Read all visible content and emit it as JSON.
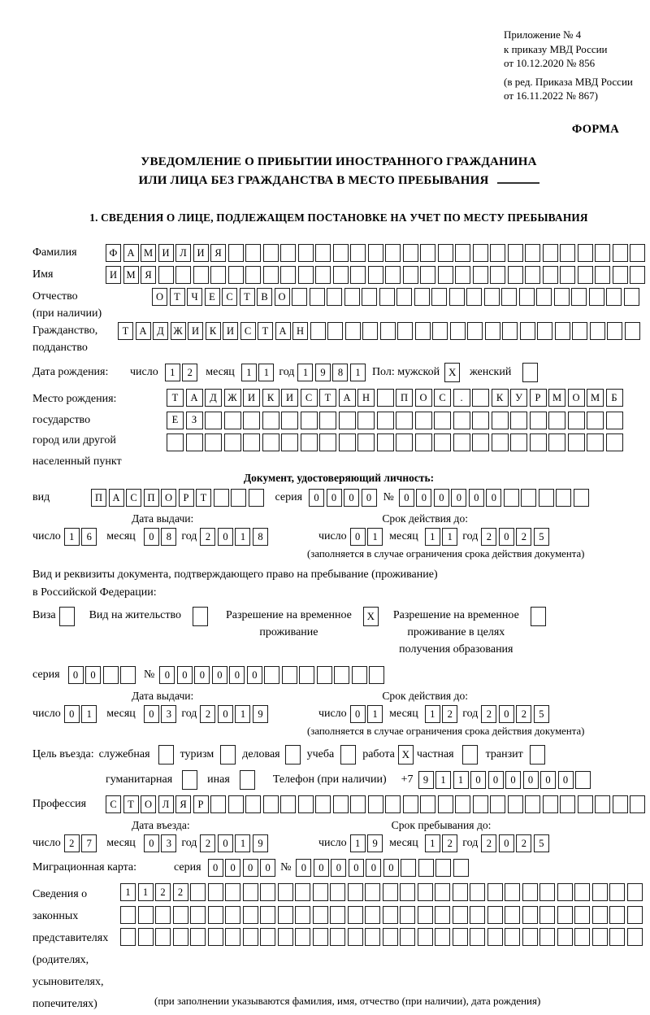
{
  "date_labels": {
    "day": "число",
    "month": "месяц",
    "year": "год"
  },
  "header": {
    "appendix1": "Приложение № 4",
    "appendix2": "к приказу МВД России",
    "appendix3": "от 10.12.2020 № 856",
    "amendment1": "(в ред. Приказа МВД России",
    "amendment2": "от 16.11.2022 № 867)",
    "forma": "ФОРМА"
  },
  "title": {
    "line1": "УВЕДОМЛЕНИЕ О ПРИБЫТИИ ИНОСТРАННОГО ГРАЖДАНИНА",
    "line2": "ИЛИ ЛИЦА БЕЗ ГРАЖДАНСТВА В МЕСТО ПРЕБЫВАНИЯ"
  },
  "section1_heading": "1. СВЕДЕНИЯ О ЛИЦЕ, ПОДЛЕЖАЩЕМ ПОСТАНОВКЕ НА УЧЕТ ПО МЕСТУ ПРЕБЫВАНИЯ",
  "person": {
    "surname": {
      "label": "Фамилия",
      "value": "ФАМИЛИЯ",
      "cells": 31
    },
    "given_name": {
      "label": "Имя",
      "value": "ИМЯ",
      "cells": 31
    },
    "patronymic": {
      "label": "Отчество",
      "label2": "(при наличии)",
      "value": "ОТЧЕСТВО",
      "cells": 28
    },
    "citizenship": {
      "label": "Гражданство,",
      "label2": "подданство",
      "value": "ТАДЖИКИСТАН",
      "cells": 30
    },
    "birth_date": {
      "label": "Дата рождения:",
      "day": "12",
      "month": "11",
      "year": "1981"
    },
    "sex": {
      "label": "Пол: мужской",
      "male": "X",
      "female_label": "женский",
      "female": ""
    },
    "birth_place": {
      "label1": "Место рождения:",
      "label2": "государство",
      "label3": "город или другой",
      "label4": "населенный пункт",
      "row1": {
        "value": "ТАДЖИКИСТАН ПОС. КУРМОМБ",
        "cells": 24
      },
      "row2": {
        "value": "ЕЗ",
        "cells": 24
      },
      "row3": {
        "value": "",
        "cells": 24
      }
    }
  },
  "identity_doc": {
    "heading": "Документ, удостоверяющий личность:",
    "kind": {
      "label": "вид",
      "value": "ПАСПОРТ",
      "cells": 10
    },
    "series": {
      "label": "серия",
      "value": "0000",
      "cells": 4
    },
    "number": {
      "label": "№",
      "value": "000000",
      "cells": 11
    },
    "issue_heading": "Дата выдачи:",
    "issue": {
      "day": "16",
      "month": "08",
      "year": "2018"
    },
    "valid_heading": "Срок действия до:",
    "valid": {
      "day": "01",
      "month": "11",
      "year": "2025"
    },
    "note": "(заполняется в случае ограничения срока действия документа)"
  },
  "residence_doc": {
    "intro1": "Вид и реквизиты документа, подтверждающего право на пребывание (проживание)",
    "intro2": "в Российской Федерации:",
    "visa": {
      "label": "Виза",
      "checked": ""
    },
    "residence_permit": {
      "label": "Вид на жительство",
      "checked": ""
    },
    "temp_permit": {
      "line1": "Разрешение на временное",
      "line2": "проживание",
      "checked": "X"
    },
    "temp_permit_edu": {
      "line1": "Разрешение на временное",
      "line2": "проживание в целях",
      "line3": "получения образования",
      "checked": ""
    },
    "series": {
      "label": "серия",
      "value": "00",
      "cells": 4
    },
    "number": {
      "label": "№",
      "value": "000000",
      "cells": 13
    },
    "issue_heading": "Дата выдачи:",
    "issue": {
      "day": "01",
      "month": "03",
      "year": "2019"
    },
    "valid_heading": "Срок действия до:",
    "valid": {
      "day": "01",
      "month": "12",
      "year": "2025"
    },
    "note": "(заполняется в случае ограничения срока действия документа)"
  },
  "entry": {
    "purpose_label": "Цель въезда:",
    "options": [
      {
        "label": "служебная",
        "checked": ""
      },
      {
        "label": "туризм",
        "checked": ""
      },
      {
        "label": "деловая",
        "checked": ""
      },
      {
        "label": "учеба",
        "checked": ""
      },
      {
        "label": "работа",
        "checked": "X"
      },
      {
        "label": "частная",
        "checked": ""
      },
      {
        "label": "транзит",
        "checked": ""
      }
    ],
    "options2": [
      {
        "label": "гуманитарная",
        "checked": ""
      },
      {
        "label": "иная",
        "checked": ""
      }
    ],
    "phone": {
      "label": "Телефон (при наличии)",
      "prefix": "+7",
      "value": "911000000",
      "cells": 10
    },
    "profession": {
      "label": "Профессия",
      "value": "СТОЛЯР",
      "cells": 31
    },
    "entry_date_heading": "Дата въезда:",
    "entry_date": {
      "day": "27",
      "month": "03",
      "year": "2019"
    },
    "stay_heading": "Срок пребывания до:",
    "stay_until": {
      "day": "19",
      "month": "12",
      "year": "2025"
    }
  },
  "migration_card": {
    "label": "Миграционная карта:",
    "series": {
      "label": "серия",
      "value": "0000",
      "cells": 4
    },
    "number": {
      "label": "№",
      "value": "000000",
      "cells": 10
    }
  },
  "representatives": {
    "label1": "Сведения о",
    "label2": "законных",
    "label3": "представителях",
    "label4": "(родителях,",
    "label5": "усыновителях,",
    "label6": "попечителях)",
    "row1": {
      "value": "1122",
      "cells": 30
    },
    "row2": {
      "value": "",
      "cells": 30
    },
    "row3": {
      "value": "",
      "cells": 30
    },
    "note": "(при заполнении указываются фамилия, имя, отчество (при наличии), дата рождения)"
  }
}
